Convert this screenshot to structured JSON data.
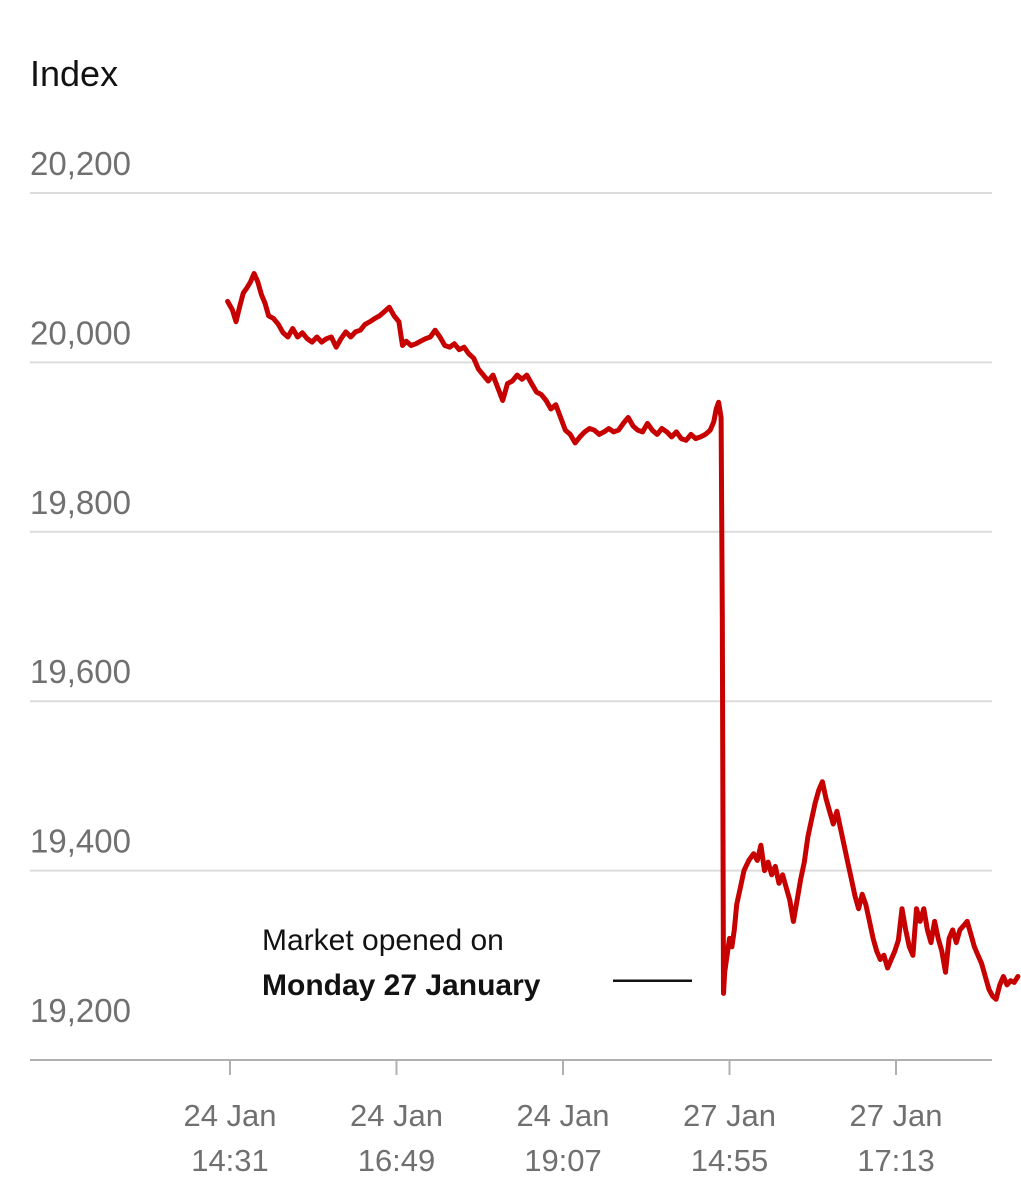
{
  "chart_data": {
    "type": "line",
    "ylabel": "Index",
    "ylim": [
      19140,
      20230
    ],
    "y_ticks": [
      {
        "value": 20200,
        "label": "20,200"
      },
      {
        "value": 20000,
        "label": "20,000"
      },
      {
        "value": 19800,
        "label": "19,800"
      },
      {
        "value": 19600,
        "label": "19,600"
      },
      {
        "value": 19400,
        "label": "19,400"
      },
      {
        "value": 19200,
        "label": "19,200"
      }
    ],
    "x_ticks": [
      {
        "position": 0,
        "line1": "24 Jan",
        "line2": "14:31"
      },
      {
        "position": 138,
        "line1": "24 Jan",
        "line2": "16:49"
      },
      {
        "position": 276,
        "line1": "24 Jan",
        "line2": "19:07"
      },
      {
        "position": 414,
        "line1": "27 Jan",
        "line2": "14:55"
      },
      {
        "position": 552,
        "line1": "27 Jan",
        "line2": "17:13"
      }
    ],
    "xlim": [
      0,
      620
    ],
    "series": [
      {
        "color": "#c70000",
        "points": [
          [
            -2,
            20072
          ],
          [
            2,
            20062
          ],
          [
            5,
            20048
          ],
          [
            8,
            20066
          ],
          [
            11,
            20082
          ],
          [
            14,
            20088
          ],
          [
            17,
            20095
          ],
          [
            20,
            20105
          ],
          [
            23,
            20095
          ],
          [
            26,
            20080
          ],
          [
            29,
            20070
          ],
          [
            32,
            20055
          ],
          [
            36,
            20052
          ],
          [
            40,
            20045
          ],
          [
            44,
            20035
          ],
          [
            48,
            20030
          ],
          [
            52,
            20040
          ],
          [
            56,
            20030
          ],
          [
            60,
            20035
          ],
          [
            64,
            20028
          ],
          [
            68,
            20024
          ],
          [
            72,
            20030
          ],
          [
            76,
            20024
          ],
          [
            80,
            20028
          ],
          [
            84,
            20030
          ],
          [
            88,
            20018
          ],
          [
            92,
            20028
          ],
          [
            96,
            20036
          ],
          [
            100,
            20030
          ],
          [
            104,
            20036
          ],
          [
            108,
            20038
          ],
          [
            112,
            20045
          ],
          [
            116,
            20048
          ],
          [
            120,
            20052
          ],
          [
            124,
            20055
          ],
          [
            128,
            20060
          ],
          [
            132,
            20065
          ],
          [
            136,
            20055
          ],
          [
            140,
            20048
          ],
          [
            143,
            20020
          ],
          [
            146,
            20025
          ],
          [
            150,
            20020
          ],
          [
            154,
            20022
          ],
          [
            158,
            20025
          ],
          [
            162,
            20028
          ],
          [
            166,
            20030
          ],
          [
            170,
            20038
          ],
          [
            174,
            20030
          ],
          [
            178,
            20020
          ],
          [
            182,
            20018
          ],
          [
            186,
            20022
          ],
          [
            190,
            20015
          ],
          [
            194,
            20018
          ],
          [
            198,
            20010
          ],
          [
            202,
            20005
          ],
          [
            206,
            19992
          ],
          [
            210,
            19985
          ],
          [
            214,
            19978
          ],
          [
            218,
            19985
          ],
          [
            222,
            19970
          ],
          [
            226,
            19955
          ],
          [
            230,
            19975
          ],
          [
            234,
            19978
          ],
          [
            238,
            19985
          ],
          [
            242,
            19980
          ],
          [
            246,
            19985
          ],
          [
            250,
            19975
          ],
          [
            254,
            19965
          ],
          [
            258,
            19962
          ],
          [
            262,
            19955
          ],
          [
            266,
            19945
          ],
          [
            270,
            19950
          ],
          [
            274,
            19935
          ],
          [
            278,
            19920
          ],
          [
            282,
            19915
          ],
          [
            286,
            19905
          ],
          [
            290,
            19912
          ],
          [
            294,
            19918
          ],
          [
            298,
            19922
          ],
          [
            302,
            19920
          ],
          [
            306,
            19915
          ],
          [
            310,
            19918
          ],
          [
            314,
            19922
          ],
          [
            318,
            19918
          ],
          [
            322,
            19920
          ],
          [
            326,
            19928
          ],
          [
            330,
            19935
          ],
          [
            334,
            19925
          ],
          [
            338,
            19920
          ],
          [
            342,
            19918
          ],
          [
            346,
            19928
          ],
          [
            350,
            19920
          ],
          [
            354,
            19915
          ],
          [
            358,
            19922
          ],
          [
            362,
            19918
          ],
          [
            366,
            19912
          ],
          [
            370,
            19918
          ],
          [
            374,
            19910
          ],
          [
            378,
            19908
          ],
          [
            382,
            19915
          ],
          [
            386,
            19910
          ],
          [
            390,
            19912
          ],
          [
            394,
            19915
          ],
          [
            398,
            19920
          ],
          [
            401,
            19930
          ],
          [
            403,
            19945
          ],
          [
            405,
            19953
          ],
          [
            407,
            19935
          ],
          [
            408,
            19700
          ],
          [
            409,
            19255
          ],
          [
            410,
            19280
          ],
          [
            412,
            19300
          ],
          [
            414,
            19320
          ],
          [
            416,
            19310
          ],
          [
            418,
            19330
          ],
          [
            420,
            19360
          ],
          [
            423,
            19380
          ],
          [
            426,
            19400
          ],
          [
            430,
            19412
          ],
          [
            434,
            19420
          ],
          [
            437,
            19412
          ],
          [
            440,
            19430
          ],
          [
            443,
            19400
          ],
          [
            446,
            19410
          ],
          [
            449,
            19395
          ],
          [
            452,
            19405
          ],
          [
            455,
            19385
          ],
          [
            458,
            19395
          ],
          [
            461,
            19380
          ],
          [
            464,
            19365
          ],
          [
            467,
            19340
          ],
          [
            470,
            19365
          ],
          [
            473,
            19390
          ],
          [
            476,
            19410
          ],
          [
            479,
            19440
          ],
          [
            482,
            19460
          ],
          [
            485,
            19480
          ],
          [
            488,
            19495
          ],
          [
            491,
            19505
          ],
          [
            494,
            19485
          ],
          [
            497,
            19470
          ],
          [
            500,
            19455
          ],
          [
            503,
            19470
          ],
          [
            506,
            19450
          ],
          [
            509,
            19430
          ],
          [
            512,
            19410
          ],
          [
            515,
            19390
          ],
          [
            518,
            19370
          ],
          [
            521,
            19355
          ],
          [
            524,
            19372
          ],
          [
            527,
            19360
          ],
          [
            530,
            19340
          ],
          [
            533,
            19320
          ],
          [
            536,
            19305
          ],
          [
            539,
            19295
          ],
          [
            542,
            19300
          ],
          [
            545,
            19285
          ],
          [
            548,
            19295
          ],
          [
            551,
            19305
          ],
          [
            554,
            19318
          ],
          [
            557,
            19355
          ],
          [
            560,
            19330
          ],
          [
            563,
            19310
          ],
          [
            566,
            19300
          ],
          [
            569,
            19355
          ],
          [
            572,
            19340
          ],
          [
            575,
            19355
          ],
          [
            578,
            19330
          ],
          [
            581,
            19315
          ],
          [
            584,
            19340
          ],
          [
            587,
            19320
          ],
          [
            590,
            19305
          ],
          [
            593,
            19280
          ],
          [
            596,
            19320
          ],
          [
            599,
            19330
          ],
          [
            602,
            19315
          ],
          [
            605,
            19330
          ],
          [
            608,
            19335
          ],
          [
            611,
            19340
          ],
          [
            614,
            19325
          ],
          [
            617,
            19310
          ],
          [
            620,
            19300
          ],
          [
            623,
            19290
          ],
          [
            626,
            19275
          ],
          [
            629,
            19260
          ],
          [
            632,
            19252
          ],
          [
            635,
            19248
          ],
          [
            638,
            19265
          ],
          [
            641,
            19275
          ],
          [
            644,
            19265
          ],
          [
            647,
            19270
          ],
          [
            650,
            19268
          ],
          [
            653,
            19275
          ]
        ]
      }
    ],
    "annotation": {
      "line1": "Market opened on",
      "line2": "Monday 27 January",
      "pointer_value": 19270
    }
  }
}
